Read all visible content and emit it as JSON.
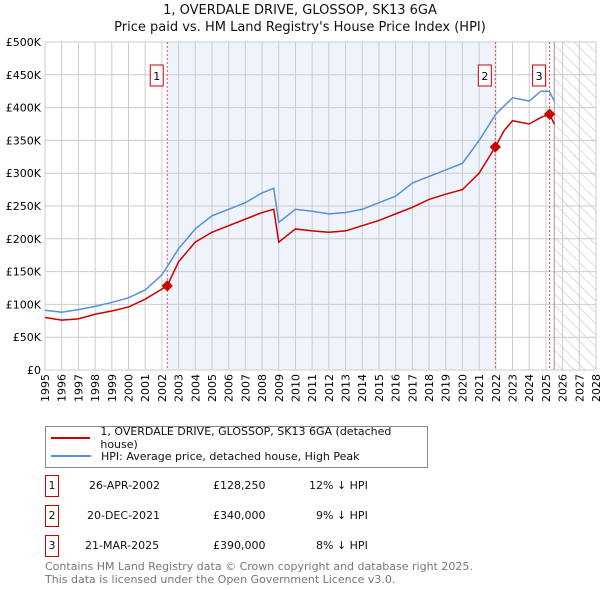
{
  "chart_data": {
    "type": "line",
    "title": "1, OVERDALE DRIVE, GLOSSOP, SK13 6GA",
    "subtitle": "Price paid vs. HM Land Registry's House Price Index (HPI)",
    "xlim": [
      1995,
      2028
    ],
    "ylim": [
      0,
      500000
    ],
    "x_ticks": [
      "1995",
      "1996",
      "1997",
      "1998",
      "1999",
      "2000",
      "2001",
      "2002",
      "2003",
      "2004",
      "2005",
      "2006",
      "2007",
      "2008",
      "2009",
      "2010",
      "2011",
      "2012",
      "2013",
      "2014",
      "2015",
      "2016",
      "2017",
      "2018",
      "2019",
      "2020",
      "2021",
      "2022",
      "2023",
      "2024",
      "2025",
      "2026",
      "2027",
      "2028"
    ],
    "y_ticks": [
      {
        "v": 0,
        "l": "£0"
      },
      {
        "v": 50000,
        "l": "£50K"
      },
      {
        "v": 100000,
        "l": "£100K"
      },
      {
        "v": 150000,
        "l": "£150K"
      },
      {
        "v": 200000,
        "l": "£200K"
      },
      {
        "v": 250000,
        "l": "£250K"
      },
      {
        "v": 300000,
        "l": "£300K"
      },
      {
        "v": 350000,
        "l": "£350K"
      },
      {
        "v": 400000,
        "l": "£400K"
      },
      {
        "v": 450000,
        "l": "£450K"
      },
      {
        "v": 500000,
        "l": "£500K"
      }
    ],
    "grid": true,
    "series": [
      {
        "name": "1, OVERDALE DRIVE, GLOSSOP, SK13 6GA (detached house)",
        "color": "#cc0000",
        "x": [
          1995,
          1996,
          1997,
          1998,
          1999,
          2000,
          2001,
          2002.32,
          2003,
          2004,
          2005,
          2006,
          2007,
          2008,
          2008.7,
          2009,
          2010,
          2011,
          2012,
          2013,
          2014,
          2015,
          2016,
          2017,
          2018,
          2019,
          2020,
          2021,
          2021.97,
          2022.5,
          2023,
          2024,
          2024.7,
          2025.22,
          2025.5
        ],
        "y": [
          80000,
          76000,
          78000,
          85000,
          90000,
          96000,
          108000,
          128250,
          165000,
          195000,
          210000,
          220000,
          230000,
          240000,
          245000,
          195000,
          215000,
          212000,
          210000,
          212000,
          220000,
          228000,
          238000,
          248000,
          260000,
          268000,
          275000,
          300000,
          340000,
          365000,
          380000,
          375000,
          385000,
          390000,
          375000
        ]
      },
      {
        "name": "HPI: Average price, detached house, High Peak",
        "color": "#5b8fd4",
        "x": [
          1995,
          1996,
          1997,
          1998,
          1999,
          2000,
          2001,
          2002,
          2003,
          2004,
          2005,
          2006,
          2007,
          2008,
          2008.7,
          2009,
          2010,
          2011,
          2012,
          2013,
          2014,
          2015,
          2016,
          2017,
          2018,
          2019,
          2020,
          2021,
          2022,
          2023,
          2024,
          2024.7,
          2025.2,
          2025.5
        ],
        "y": [
          91000,
          88000,
          92000,
          97000,
          103000,
          110000,
          122000,
          145000,
          185000,
          215000,
          235000,
          245000,
          255000,
          270000,
          277000,
          225000,
          245000,
          242000,
          238000,
          240000,
          245000,
          255000,
          265000,
          285000,
          295000,
          305000,
          315000,
          350000,
          390000,
          415000,
          410000,
          425000,
          425000,
          410000
        ]
      }
    ],
    "annotations": [
      {
        "label": "1",
        "x": 2002.32,
        "y": 128250,
        "date": "26-APR-2002",
        "price": "£128,250",
        "hpi": "12% ↓ HPI"
      },
      {
        "label": "2",
        "x": 2021.97,
        "y": 340000,
        "date": "20-DEC-2021",
        "price": "£340,000",
        "hpi": "9% ↓ HPI"
      },
      {
        "label": "3",
        "x": 2025.22,
        "y": 390000,
        "date": "21-MAR-2025",
        "price": "£390,000",
        "hpi": "8% ↓ HPI"
      }
    ],
    "shaded_range": [
      2002.32,
      2021.97
    ],
    "forecast_from": 2025.5
  },
  "footer": [
    "Contains HM Land Registry data © Crown copyright and database right 2025.",
    "This data is licensed under the Open Government Licence v3.0."
  ]
}
